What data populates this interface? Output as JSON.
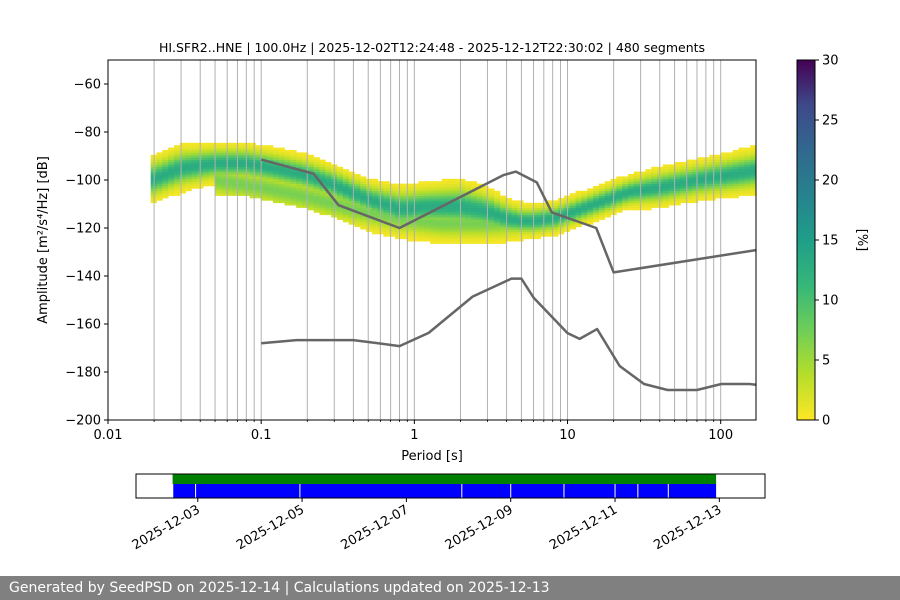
{
  "title": "HI.SFR2..HNE | 100.0Hz | 2025-12-02T12:24:48 - 2025-12-12T22:30:02 | 480 segments",
  "footer": "Generated by SeedPSD on 2025-12-14 | Calculations updated on 2025-12-13",
  "chart_data": [
    {
      "type": "heatmap",
      "xlabel": "Period [s]",
      "ylabel": "Amplitude [m²/s⁴/Hz] [dB]",
      "xscale": "log",
      "xlim": [
        0.01,
        170
      ],
      "ylim": [
        -200,
        -50
      ],
      "x_ticks": [
        {
          "value": 0.01,
          "label": "0.01"
        },
        {
          "value": 0.1,
          "label": "0.1"
        },
        {
          "value": 1,
          "label": "1"
        },
        {
          "value": 10,
          "label": "10"
        },
        {
          "value": 100,
          "label": "100"
        }
      ],
      "y_ticks": [
        -60,
        -80,
        -100,
        -120,
        -140,
        -160,
        -180,
        -200
      ],
      "grid": "x minor and major",
      "colorbar": {
        "label": "[%]",
        "range": [
          0,
          30
        ],
        "ticks": [
          0,
          5,
          10,
          15,
          20,
          25,
          30
        ],
        "colormap": "viridis_r"
      },
      "psd_mode": {
        "period": [
          0.019,
          0.03,
          0.05,
          0.08,
          0.12,
          0.2,
          0.3,
          0.5,
          0.8,
          1.2,
          2,
          3,
          4,
          5,
          6,
          8,
          10,
          15,
          25,
          40,
          70,
          170
        ],
        "db": [
          -100,
          -95,
          -93,
          -93,
          -95,
          -98,
          -102,
          -108,
          -112,
          -111,
          -111,
          -113,
          -116,
          -117,
          -117,
          -116,
          -114,
          -110,
          -105,
          -103,
          -100,
          -96
        ],
        "spread_db": [
          7,
          7,
          6,
          6,
          6,
          6,
          6,
          6,
          7,
          7,
          8,
          7,
          6,
          5,
          5,
          5,
          5,
          5,
          5,
          6,
          6,
          7
        ]
      },
      "psd_secondary": {
        "period": [
          0.05,
          0.1,
          0.2,
          0.4,
          0.8,
          1.5,
          3,
          5
        ],
        "db": [
          -100,
          -103,
          -107,
          -112,
          -116,
          -118,
          -118,
          -117
        ]
      },
      "noise_models": [
        {
          "period": [
            0.1,
            0.22,
            0.32,
            0.8,
            3.8,
            4.6,
            6.3,
            7.9,
            15.4,
            20,
            354.8
          ],
          "db": [
            -91.5,
            -97.4,
            -110.5,
            -120,
            -98,
            -96.5,
            -101,
            -113.5,
            -120,
            -138.5,
            -126
          ]
        },
        {
          "period": [
            0.1,
            0.17,
            0.4,
            0.8,
            1.24,
            2.4,
            4.3,
            5,
            6,
            10,
            12,
            15.6,
            21.9,
            31.6,
            45,
            70,
            101,
            154,
            328
          ],
          "db": [
            -168,
            -166.7,
            -166.7,
            -169.2,
            -163.7,
            -148.6,
            -141.1,
            -141.1,
            -149,
            -163.8,
            -166.2,
            -162.1,
            -177.5,
            -185,
            -187.5,
            -187.5,
            -185,
            -185,
            -187.5
          ]
        }
      ]
    },
    {
      "type": "timeline",
      "x_tick_labels": [
        "2025-12-03",
        "2025-12-05",
        "2025-12-07",
        "2025-12-09",
        "2025-12-11",
        "2025-12-13"
      ],
      "x_ticks": [
        "2025-12-03",
        "2025-12-05",
        "2025-12-07",
        "2025-12-09",
        "2025-12-11",
        "2025-12-13"
      ],
      "xlim": [
        "2025-12-01T19:35:00",
        "2025-12-13T21:00:00"
      ],
      "data_range": [
        "2025-12-02T12:24:48",
        "2025-12-12T22:30:02"
      ],
      "gaps": [
        "2025-12-02T12:30:00",
        "2025-12-02T23:00:00",
        "2025-12-04T23:00:00",
        "2025-12-08T01:30:00",
        "2025-12-09T00:00:00",
        "2025-12-10T00:30:00",
        "2025-12-11T00:00:00",
        "2025-12-11T10:30:00",
        "2025-12-12T00:30:00"
      ],
      "colors": {
        "top": "#008000",
        "bottom": "#0000ff"
      }
    }
  ]
}
